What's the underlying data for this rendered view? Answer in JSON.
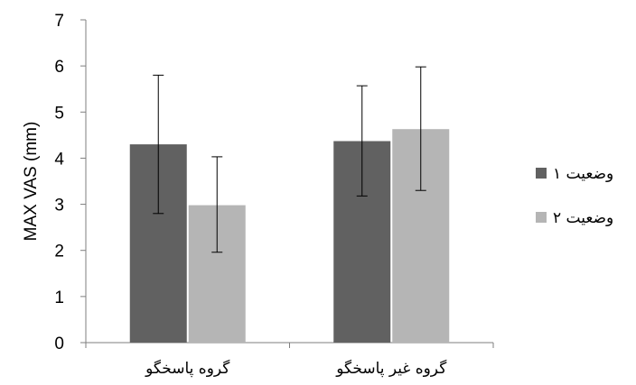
{
  "chart_data": {
    "type": "bar",
    "title": "",
    "xlabel": "",
    "ylabel": "MAX VAS (mm)",
    "ylim": [
      0,
      7
    ],
    "yticks": [
      0,
      1,
      2,
      3,
      4,
      5,
      6,
      7
    ],
    "categories": [
      "گروه پاسخگو",
      "گروه غیر پاسخگو"
    ],
    "series": [
      {
        "name": "وضعیت ۱",
        "color": "#616161",
        "values": [
          4.3,
          4.37
        ],
        "error_low": [
          2.8,
          3.18
        ],
        "error_high": [
          5.8,
          5.57
        ]
      },
      {
        "name": "وضعیت ۲",
        "color": "#b5b5b5",
        "values": [
          2.98,
          4.63
        ],
        "error_low": [
          1.96,
          3.3
        ],
        "error_high": [
          4.03,
          5.98
        ]
      }
    ],
    "legend_position": "right",
    "grid": false
  }
}
